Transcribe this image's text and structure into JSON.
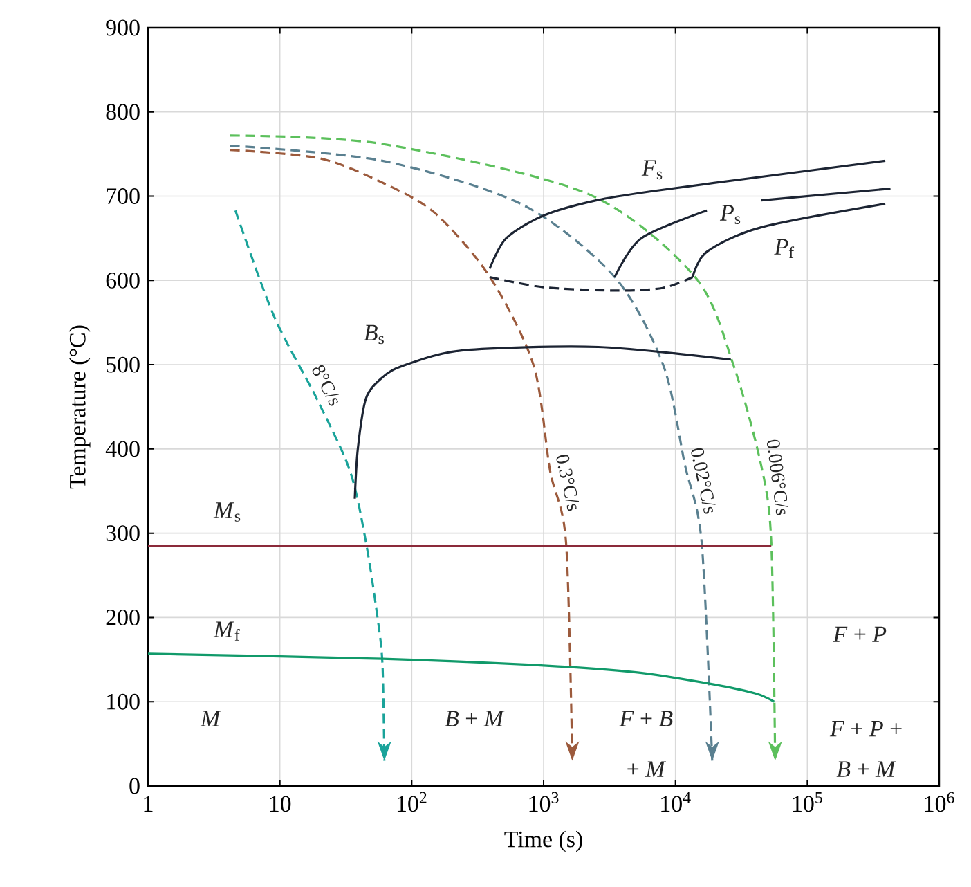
{
  "chart_data": {
    "type": "line",
    "xlabel": "Time (s)",
    "ylabel": "Temperature (°C)",
    "log": "x",
    "grid": true,
    "xlim": [
      1,
      1000000
    ],
    "ylim": [
      0,
      900
    ],
    "xticks": [
      1,
      10,
      {
        "value": 100,
        "label": "10$^{2}$"
      },
      {
        "value": 1000,
        "label": "10$^{3}$"
      },
      {
        "value": 10000,
        "label": "10$^{4}$"
      },
      {
        "value": 100000,
        "label": "10$^{5}$"
      },
      {
        "value": 1000000,
        "label": "10$^{6}$"
      }
    ],
    "yticks": [
      0,
      100,
      200,
      300,
      400,
      500,
      600,
      700,
      800,
      900
    ],
    "series": [
      {
        "name": "8°C/s",
        "color": "#1aa39a",
        "line_style": "dashed",
        "x": [
          4.6,
          9,
          19,
          34,
          45,
          55,
          60,
          62
        ],
        "values": [
          683,
          558,
          460,
          374,
          289,
          200,
          144,
          30
        ]
      },
      {
        "name": "0.3°C/s",
        "color": "#9c5a3c",
        "line_style": "dashed",
        "x": [
          4.2,
          20,
          60,
          150,
          392,
          840,
          1120,
          1480,
          1650
        ],
        "values": [
          755,
          745,
          716,
          680,
          604,
          499,
          374,
          289,
          30
        ]
      },
      {
        "name": "0.02°C/s",
        "color": "#5a8090",
        "line_style": "dashed",
        "x": [
          4.2,
          60,
          690,
          3460,
          8100,
          11800,
          15800,
          19000
        ],
        "values": [
          760,
          742,
          690,
          604,
          499,
          381,
          289,
          30
        ]
      },
      {
        "name": "0.006°C/s",
        "color": "#5cc05c",
        "line_style": "dashed",
        "x": [
          4.2,
          60,
          2150,
          14100,
          27600,
          44600,
          53300,
          57000
        ],
        "values": [
          772,
          762,
          703,
          604,
          499,
          381,
          289,
          30
        ]
      },
      {
        "name": "*F*$_{s}$",
        "color": "#1c2433",
        "line_style": "solid",
        "x": [
          390,
          520,
          1000,
          2500,
          6700,
          40000,
          390000
        ],
        "values": [
          614,
          650,
          677,
          695,
          706,
          722,
          742
        ]
      },
      {
        "name": "*P*$_{s}$",
        "color": "#1c2433",
        "line_style": "solid",
        "x": [
          3460,
          5500,
          17300,
          30000,
          44600,
          427000
        ],
        "values": [
          604,
          650,
          683,
          null,
          695,
          709
        ]
      },
      {
        "name": "*P*$_{f}$",
        "color": "#1c2433",
        "line_style": "solid",
        "x": [
          13500,
          17300,
          44600,
          390000
        ],
        "values": [
          604,
          634,
          663,
          691
        ]
      },
      {
        "color": "#1c2433",
        "line_style": "dashed",
        "x": [
          390,
          1000,
          3460,
          8000,
          13500
        ],
        "values": [
          604,
          592,
          588,
          591,
          604
        ]
      },
      {
        "name": "*B*$_{s}$",
        "color": "#1c2433",
        "line_style": "solid",
        "x": [
          37,
          39,
          45,
          60,
          87,
          245,
          2600,
          26300
        ],
        "values": [
          341,
          400,
          460,
          485,
          499,
          517,
          521,
          506
        ]
      },
      {
        "name": "*M*$_{s}$",
        "color": "#8b2a3a",
        "line_style": "solid",
        "x": [
          1,
          53300
        ],
        "values": [
          285,
          285
        ]
      },
      {
        "name": "*M*$_{f}$",
        "color": "#119a6a",
        "line_style": "solid",
        "x": [
          1,
          60,
          1000,
          5000,
          17300,
          40000,
          56000
        ],
        "values": [
          157,
          151,
          143,
          135,
          122,
          110,
          100
        ]
      }
    ],
    "annotations": [
      "*M*",
      "*B* + *M*",
      "*F* + *B*",
      "+ *M*",
      "*F* + *P*",
      "*F* + *P* +",
      "*B* + *M*"
    ]
  }
}
